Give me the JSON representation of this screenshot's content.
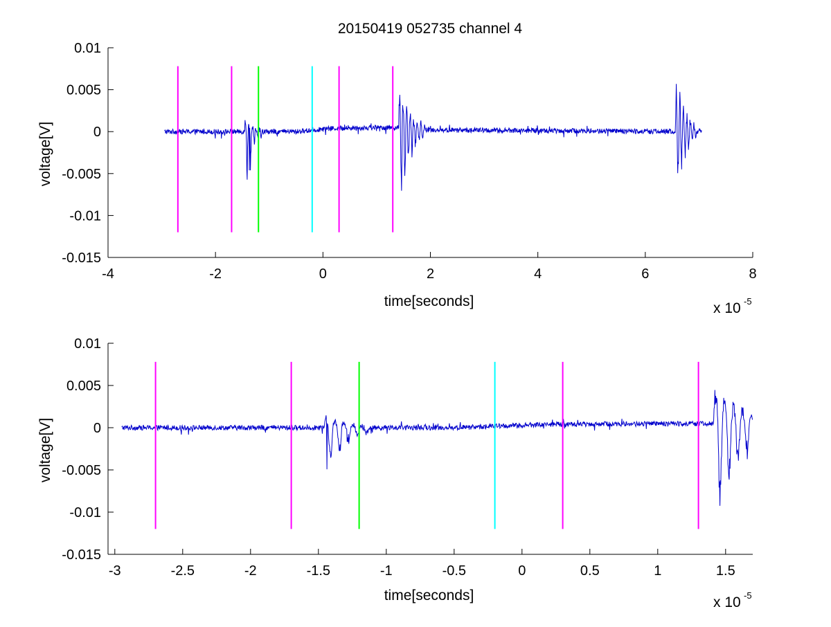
{
  "figure": {
    "title": "20150419 052735 channel 4"
  },
  "colors": {
    "background": "#ffffff",
    "axes": "#000000",
    "trace": "#0000cc",
    "magenta": "#ff00ff",
    "green": "#00ff00",
    "cyan": "#00ffff"
  },
  "chart_data": [
    {
      "type": "line",
      "title": "20150419 052735 channel 4",
      "xlabel": "time[seconds]",
      "ylabel": "voltage[V]",
      "x_multiplier_label": "x 10",
      "x_multiplier_exponent": "-5",
      "xlim": [
        -4,
        8
      ],
      "ylim": [
        -0.015,
        0.01
      ],
      "x_units_scale": 1e-05,
      "xticks": [
        -4,
        -2,
        0,
        2,
        4,
        6,
        8
      ],
      "xtick_labels": [
        "-4",
        "-2",
        "0",
        "2",
        "4",
        "6",
        "8"
      ],
      "yticks": [
        0.01,
        0.005,
        0,
        -0.005,
        -0.01,
        -0.015
      ],
      "ytick_labels": [
        "0.01",
        "0.005",
        "0",
        "-0.005",
        "-0.01",
        "-0.015"
      ],
      "grid": false,
      "series": [
        {
          "style": "noisy-waveform",
          "color": "#0000cc",
          "x_range": [
            -2.95,
            7.05
          ],
          "baseline_points": [
            [
              -2.95,
              0.0
            ],
            [
              -0.5,
              0.0
            ],
            [
              0.2,
              0.0004
            ],
            [
              1.3,
              0.0005
            ],
            [
              2.0,
              0.0002
            ],
            [
              7.05,
              0.0
            ]
          ],
          "noise_amplitude": 0.0003,
          "bursts": [
            {
              "x": -1.42,
              "width": 0.3,
              "peak": 0.0016,
              "trough": -0.006
            },
            {
              "x": 1.45,
              "width": 0.45,
              "peak": 0.005,
              "trough": -0.011
            },
            {
              "x": 6.6,
              "width": 0.35,
              "peak": 0.007,
              "trough": -0.0085
            }
          ]
        }
      ],
      "markers": [
        {
          "x": -2.7,
          "color": "#ff00ff"
        },
        {
          "x": -1.7,
          "color": "#ff00ff"
        },
        {
          "x": -1.2,
          "color": "#00ff00"
        },
        {
          "x": -0.2,
          "color": "#00ffff"
        },
        {
          "x": 0.3,
          "color": "#ff00ff"
        },
        {
          "x": 1.3,
          "color": "#ff00ff"
        }
      ],
      "marker_y_range": [
        -0.012,
        0.0078
      ]
    },
    {
      "type": "line",
      "xlabel": "time[seconds]",
      "ylabel": "voltage[V]",
      "x_multiplier_label": "x 10",
      "x_multiplier_exponent": "-5",
      "xlim": [
        -3.05,
        1.7
      ],
      "ylim": [
        -0.015,
        0.01
      ],
      "x_units_scale": 1e-05,
      "xticks": [
        -3,
        -2.5,
        -2,
        -1.5,
        -1,
        -0.5,
        0,
        0.5,
        1,
        1.5
      ],
      "xtick_labels": [
        "-3",
        "-2.5",
        "-2",
        "-1.5",
        "-1",
        "-0.5",
        "0",
        "0.5",
        "1",
        "1.5"
      ],
      "yticks": [
        0.01,
        0.005,
        0,
        -0.005,
        -0.01,
        -0.015
      ],
      "ytick_labels": [
        "0.01",
        "0.005",
        "0",
        "-0.005",
        "-0.01",
        "-0.015"
      ],
      "grid": false,
      "series": [
        {
          "style": "noisy-waveform",
          "color": "#0000cc",
          "x_range": [
            -2.95,
            1.7
          ],
          "baseline_points": [
            [
              -2.95,
              0.0
            ],
            [
              -0.5,
              0.0
            ],
            [
              0.2,
              0.0004
            ],
            [
              1.3,
              0.0005
            ],
            [
              1.7,
              0.0003
            ]
          ],
          "noise_amplitude": 0.0003,
          "bursts": [
            {
              "x": -1.42,
              "width": 0.3,
              "peak": 0.0016,
              "trough": -0.006
            },
            {
              "x": 1.45,
              "width": 0.45,
              "peak": 0.005,
              "trough": -0.011
            }
          ]
        }
      ],
      "markers": [
        {
          "x": -2.7,
          "color": "#ff00ff"
        },
        {
          "x": -1.7,
          "color": "#ff00ff"
        },
        {
          "x": -1.2,
          "color": "#00ff00"
        },
        {
          "x": -0.2,
          "color": "#00ffff"
        },
        {
          "x": 0.3,
          "color": "#ff00ff"
        },
        {
          "x": 1.3,
          "color": "#ff00ff"
        }
      ],
      "marker_y_range": [
        -0.012,
        0.0078
      ]
    }
  ]
}
